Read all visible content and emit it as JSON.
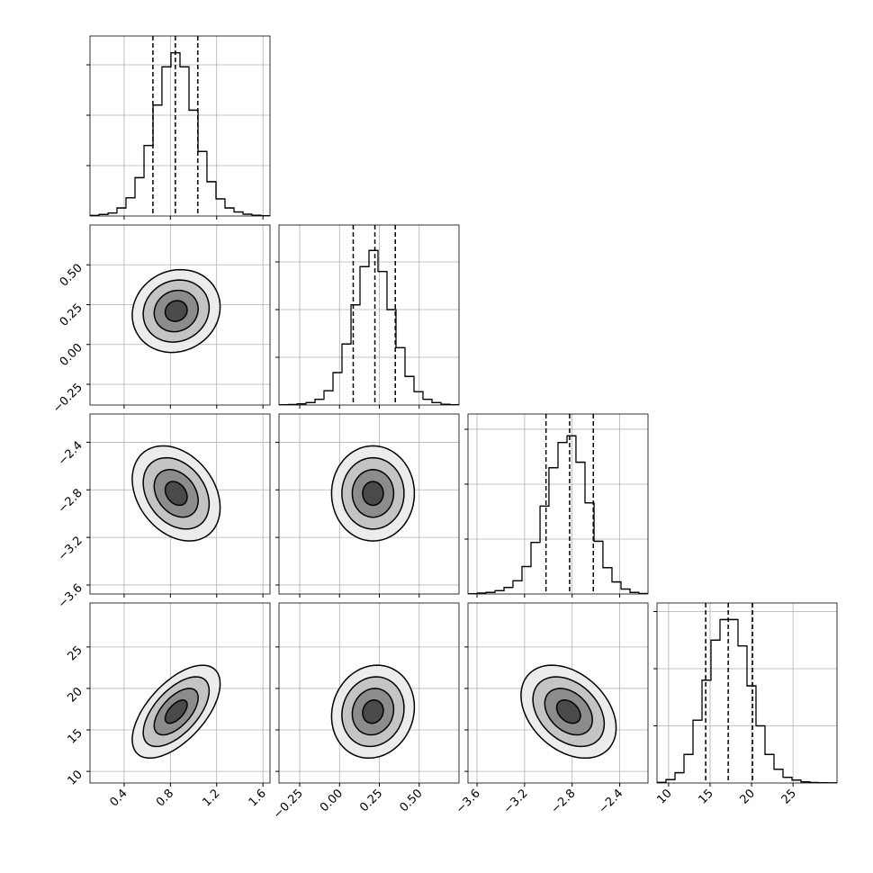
{
  "chart_data": {
    "type": "corner",
    "levels": [
      0.5,
      1,
      1.5,
      2
    ],
    "params": [
      {
        "xlim": [
          0.105,
          1.661
        ],
        "xticks": [
          0.4,
          0.8,
          1.2,
          1.6
        ],
        "bins": [
          0.105,
          0.183,
          0.261,
          0.338,
          0.416,
          0.494,
          0.572,
          0.65,
          0.727,
          0.805,
          0.883,
          0.961,
          1.039,
          1.116,
          1.194,
          1.272,
          1.35,
          1.428,
          1.505,
          1.583,
          1.661
        ],
        "counts": [
          5,
          15,
          30,
          80,
          180,
          380,
          700,
          1100,
          1480,
          1620,
          1480,
          1050,
          640,
          340,
          170,
          80,
          40,
          18,
          8,
          3
        ],
        "hist_ylim": [
          0,
          1786
        ],
        "hist_yticks": [
          500,
          1000,
          1500
        ],
        "quantiles": [
          0.649,
          0.843,
          1.037
        ],
        "mean": 0.85,
        "sd": 0.19
      },
      {
        "xlim": [
          -0.38,
          0.75
        ],
        "xticks": [
          {
            "value": -0.25,
            "label": "−0.25"
          },
          {
            "value": 0,
            "label": "0.00"
          },
          {
            "value": 0.25,
            "label": "0.25"
          },
          {
            "value": 0.5,
            "label": "0.50"
          }
        ],
        "bins": [
          -0.38,
          -0.3235,
          -0.267,
          -0.2105,
          -0.154,
          -0.0975,
          -0.041,
          0.0155,
          0.072,
          0.1285,
          0.185,
          0.2415,
          0.298,
          0.3545,
          0.411,
          0.4675,
          0.524,
          0.5805,
          0.637,
          0.6935,
          0.75
        ],
        "counts": [
          2,
          5,
          12,
          25,
          60,
          150,
          340,
          640,
          1050,
          1450,
          1620,
          1400,
          1000,
          600,
          300,
          140,
          60,
          25,
          8,
          3
        ],
        "hist_ylim": [
          0,
          1887
        ],
        "hist_yticks": [
          500,
          1000,
          1500
        ],
        "quantiles": [
          0.086,
          0.222,
          0.35
        ],
        "mean": 0.21,
        "sd": 0.13
      },
      {
        "xlim": [
          -3.676,
          -2.162
        ],
        "xticks": [
          {
            "value": -3.6,
            "label": "−3.6"
          },
          {
            "value": -3.2,
            "label": "−3.2"
          },
          {
            "value": -2.8,
            "label": "−2.8"
          },
          {
            "value": -2.4,
            "label": "−2.4"
          }
        ],
        "bins": [
          -3.676,
          -3.6,
          -3.525,
          -3.449,
          -3.373,
          -3.298,
          -3.222,
          -3.146,
          -3.07,
          -2.995,
          -2.919,
          -2.843,
          -2.768,
          -2.692,
          -2.616,
          -2.541,
          -2.465,
          -2.389,
          -2.313,
          -2.238,
          -2.162
        ],
        "counts": [
          3,
          8,
          15,
          30,
          60,
          120,
          250,
          470,
          800,
          1150,
          1380,
          1440,
          1200,
          830,
          480,
          240,
          110,
          45,
          14,
          4
        ],
        "hist_ylim": [
          0,
          1639
        ],
        "hist_yticks": [
          500,
          1000,
          1500
        ],
        "quantiles": [
          -3.02,
          -2.821,
          -2.622
        ],
        "mean": -2.83,
        "sd": 0.2
      },
      {
        "xlim": [
          8.6,
          30.3
        ],
        "xticks": [
          10,
          15,
          20,
          25
        ],
        "bins": [
          8.6,
          9.685,
          10.77,
          11.855,
          12.94,
          14.025,
          15.11,
          16.195,
          17.28,
          18.365,
          19.45,
          20.535,
          21.62,
          22.705,
          23.79,
          24.875,
          25.96,
          27.045,
          28.13,
          29.215,
          30.3
        ],
        "counts": [
          5,
          30,
          90,
          250,
          550,
          900,
          1250,
          1430,
          1430,
          1200,
          850,
          500,
          250,
          120,
          50,
          25,
          10,
          4,
          2,
          1
        ],
        "hist_ylim": [
          0,
          1575
        ],
        "hist_yticks": [
          500,
          1000,
          1500
        ],
        "quantiles": [
          14.47,
          17.19,
          20.12
        ],
        "mean": 17.2,
        "sd": 2.8
      }
    ],
    "pairs": [
      {
        "x": 0,
        "y": 1,
        "corr": 0.1
      },
      {
        "x": 0,
        "y": 2,
        "corr": -0.3
      },
      {
        "x": 1,
        "y": 2,
        "corr": 0
      },
      {
        "x": 0,
        "y": 3,
        "corr": 0.6
      },
      {
        "x": 1,
        "y": 3,
        "corr": 0.1
      },
      {
        "x": 2,
        "y": 3,
        "corr": -0.35
      }
    ]
  }
}
